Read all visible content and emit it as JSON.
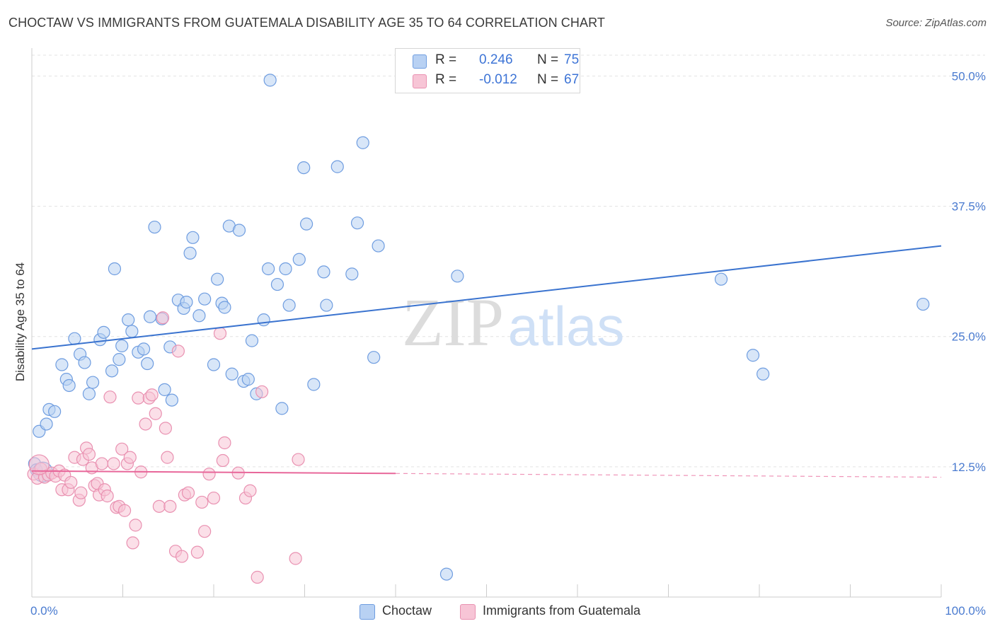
{
  "title": "CHOCTAW VS IMMIGRANTS FROM GUATEMALA DISABILITY AGE 35 TO 64 CORRELATION CHART",
  "source": "Source: ZipAtlas.com",
  "watermark": {
    "zip": "ZIP",
    "atlas": "atlas"
  },
  "colors": {
    "blue_fill": "#b8d1f3",
    "blue_stroke": "#6f9de0",
    "blue_line": "#3a73cf",
    "pink_fill": "#f7c5d6",
    "pink_stroke": "#e991b1",
    "pink_line": "#e8679a",
    "grid": "#e3e3e3",
    "tick_label": "#4a7bd0"
  },
  "legend_top": [
    {
      "r_label": "R =",
      "r_value": "0.246",
      "n_label": "N =",
      "n_value": "75"
    },
    {
      "r_label": "R =",
      "r_value": "-0.012",
      "n_label": "N =",
      "n_value": "67"
    }
  ],
  "legend_bottom": [
    {
      "label": "Choctaw"
    },
    {
      "label": "Immigrants from Guatemala"
    }
  ],
  "chart_data": {
    "type": "scatter",
    "ylabel": "Disability Age 35 to 64",
    "xlim": [
      0,
      100
    ],
    "ylim": [
      0,
      52
    ],
    "x_tick_labels": [
      "0.0%",
      "100.0%"
    ],
    "y_ticks": [
      12.5,
      25.0,
      37.5,
      50.0
    ],
    "y_tick_labels": [
      "12.5%",
      "25.0%",
      "37.5%",
      "50.0%"
    ],
    "grid": true,
    "series": [
      {
        "name": "Choctaw",
        "trend": {
          "x": [
            0,
            100
          ],
          "y": [
            23.8,
            33.7
          ],
          "dashed_from": null
        },
        "points": [
          [
            0.3,
            12.8
          ],
          [
            0.8,
            15.9
          ],
          [
            1.6,
            16.6
          ],
          [
            1.9,
            18.0
          ],
          [
            2.5,
            17.8
          ],
          [
            3.3,
            22.3
          ],
          [
            3.8,
            20.9
          ],
          [
            4.1,
            20.3
          ],
          [
            4.7,
            24.8
          ],
          [
            5.3,
            23.3
          ],
          [
            5.8,
            22.5
          ],
          [
            6.3,
            19.5
          ],
          [
            6.7,
            20.6
          ],
          [
            7.5,
            24.7
          ],
          [
            7.9,
            25.4
          ],
          [
            8.8,
            21.7
          ],
          [
            9.1,
            31.5
          ],
          [
            9.6,
            22.8
          ],
          [
            9.9,
            24.1
          ],
          [
            10.6,
            26.6
          ],
          [
            11.0,
            25.5
          ],
          [
            11.7,
            23.5
          ],
          [
            12.3,
            23.8
          ],
          [
            12.7,
            22.4
          ],
          [
            13.0,
            26.9
          ],
          [
            13.5,
            35.5
          ],
          [
            14.3,
            26.7
          ],
          [
            14.6,
            19.9
          ],
          [
            15.2,
            24.0
          ],
          [
            15.4,
            18.9
          ],
          [
            16.1,
            28.5
          ],
          [
            16.7,
            27.7
          ],
          [
            17.0,
            28.3
          ],
          [
            17.4,
            33.0
          ],
          [
            17.7,
            34.5
          ],
          [
            18.4,
            27.0
          ],
          [
            19.0,
            28.6
          ],
          [
            20.0,
            22.3
          ],
          [
            20.4,
            30.5
          ],
          [
            20.9,
            28.2
          ],
          [
            21.2,
            27.8
          ],
          [
            21.7,
            35.6
          ],
          [
            22.0,
            21.4
          ],
          [
            22.8,
            35.2
          ],
          [
            23.3,
            20.7
          ],
          [
            23.8,
            20.9
          ],
          [
            24.2,
            24.6
          ],
          [
            24.7,
            19.5
          ],
          [
            25.5,
            26.6
          ],
          [
            26.0,
            31.5
          ],
          [
            27.0,
            30.0
          ],
          [
            27.5,
            18.1
          ],
          [
            27.9,
            31.5
          ],
          [
            28.3,
            28.0
          ],
          [
            29.4,
            32.4
          ],
          [
            29.9,
            41.2
          ],
          [
            30.2,
            35.8
          ],
          [
            31.0,
            20.4
          ],
          [
            32.1,
            31.2
          ],
          [
            32.4,
            28.0
          ],
          [
            33.6,
            41.3
          ],
          [
            35.2,
            31.0
          ],
          [
            35.8,
            35.9
          ],
          [
            36.4,
            43.6
          ],
          [
            37.6,
            23.0
          ],
          [
            38.1,
            33.7
          ],
          [
            26.2,
            49.6
          ],
          [
            45.6,
            2.2
          ],
          [
            46.8,
            30.8
          ],
          [
            75.8,
            30.5
          ],
          [
            79.3,
            23.2
          ],
          [
            80.4,
            21.4
          ],
          [
            98.0,
            28.1
          ],
          [
            0.5,
            12.2
          ],
          [
            1.2,
            12.0
          ]
        ]
      },
      {
        "name": "Immigrants from Guatemala",
        "trend": {
          "x": [
            0,
            100
          ],
          "y": [
            12.1,
            11.5
          ],
          "dashed_from": 40
        },
        "points": [
          [
            0.2,
            11.8
          ],
          [
            0.6,
            11.4
          ],
          [
            1.0,
            12.3
          ],
          [
            1.4,
            11.5
          ],
          [
            1.8,
            11.7
          ],
          [
            2.2,
            11.9
          ],
          [
            2.6,
            11.6
          ],
          [
            3.0,
            12.1
          ],
          [
            3.3,
            10.3
          ],
          [
            3.6,
            11.7
          ],
          [
            4.0,
            10.3
          ],
          [
            4.3,
            11.0
          ],
          [
            4.7,
            13.4
          ],
          [
            5.2,
            9.3
          ],
          [
            5.4,
            10.0
          ],
          [
            5.6,
            13.2
          ],
          [
            6.0,
            14.3
          ],
          [
            6.3,
            13.7
          ],
          [
            6.6,
            12.4
          ],
          [
            6.9,
            10.7
          ],
          [
            7.2,
            10.9
          ],
          [
            7.4,
            9.8
          ],
          [
            7.7,
            12.8
          ],
          [
            8.0,
            10.3
          ],
          [
            8.3,
            9.7
          ],
          [
            8.6,
            19.2
          ],
          [
            9.0,
            12.8
          ],
          [
            9.3,
            8.6
          ],
          [
            9.6,
            8.7
          ],
          [
            9.9,
            14.2
          ],
          [
            10.2,
            8.3
          ],
          [
            10.5,
            12.8
          ],
          [
            10.8,
            13.4
          ],
          [
            11.1,
            5.2
          ],
          [
            11.4,
            6.9
          ],
          [
            11.7,
            19.1
          ],
          [
            12.0,
            12.0
          ],
          [
            12.5,
            16.6
          ],
          [
            12.9,
            19.1
          ],
          [
            13.2,
            19.4
          ],
          [
            13.6,
            17.6
          ],
          [
            14.0,
            8.7
          ],
          [
            14.4,
            26.8
          ],
          [
            14.7,
            16.2
          ],
          [
            14.9,
            13.4
          ],
          [
            15.2,
            8.7
          ],
          [
            15.8,
            4.4
          ],
          [
            16.1,
            23.6
          ],
          [
            16.5,
            3.9
          ],
          [
            16.8,
            9.8
          ],
          [
            17.2,
            10.0
          ],
          [
            18.2,
            4.3
          ],
          [
            18.7,
            9.1
          ],
          [
            19.0,
            6.3
          ],
          [
            19.5,
            11.8
          ],
          [
            20.0,
            9.5
          ],
          [
            20.7,
            25.3
          ],
          [
            21.0,
            13.1
          ],
          [
            21.2,
            14.8
          ],
          [
            22.7,
            11.9
          ],
          [
            23.5,
            9.5
          ],
          [
            24.0,
            10.2
          ],
          [
            24.8,
            1.9
          ],
          [
            25.3,
            19.7
          ],
          [
            29.0,
            3.7
          ],
          [
            29.3,
            13.2
          ],
          [
            0.8,
            12.7
          ]
        ]
      }
    ]
  }
}
